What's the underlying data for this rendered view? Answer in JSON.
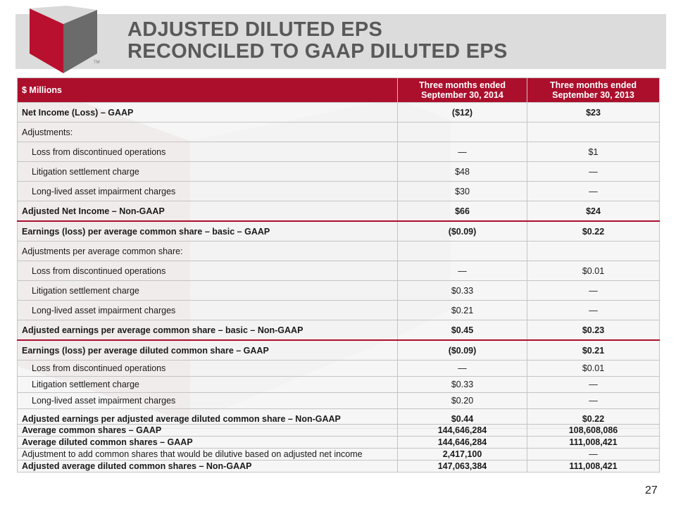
{
  "slide": {
    "title_line1": "ADJUSTED DILUTED EPS",
    "title_line2": "RECONCILED TO GAAP DILUTED EPS",
    "trademark": "TM",
    "page_number": "27"
  },
  "colors": {
    "accent": "#ab0f2c",
    "title": "#595959",
    "band": "#dcdcdc"
  },
  "table": {
    "headers": [
      "$ Millions",
      "Three months ended September 30, 2014",
      "Three months ended September 30, 2013"
    ],
    "rows": [
      {
        "label": "Net Income (Loss) – GAAP",
        "v2014": "($12)",
        "v2013": "$23"
      },
      {
        "label": "Adjustments:",
        "v2014": "",
        "v2013": ""
      },
      {
        "label": "Loss from discontinued operations",
        "v2014": "—",
        "v2013": "$1"
      },
      {
        "label": "Litigation settlement charge",
        "v2014": "$48",
        "v2013": "—"
      },
      {
        "label": "Long-lived asset impairment charges",
        "v2014": "$30",
        "v2013": "—"
      },
      {
        "label": "Adjusted Net Income – Non-GAAP",
        "v2014": "$66",
        "v2013": "$24"
      },
      {
        "label": "Earnings (loss) per average common share – basic – GAAP",
        "v2014": "($0.09)",
        "v2013": "$0.22"
      },
      {
        "label": "Adjustments per average common share:",
        "v2014": "",
        "v2013": ""
      },
      {
        "label": "Loss from discontinued operations",
        "v2014": "—",
        "v2013": "$0.01"
      },
      {
        "label": "Litigation settlement charge",
        "v2014": "$0.33",
        "v2013": "—"
      },
      {
        "label": "Long-lived asset impairment charges",
        "v2014": "$0.21",
        "v2013": "—"
      },
      {
        "label": "Adjusted earnings per average common share – basic – Non-GAAP",
        "v2014": "$0.45",
        "v2013": "$0.23"
      },
      {
        "label": "Earnings (loss) per average diluted common share – GAAP",
        "v2014": "($0.09)",
        "v2013": "$0.21"
      },
      {
        "label": "Loss from discontinued operations",
        "v2014": "—",
        "v2013": "$0.01"
      },
      {
        "label": "Litigation settlement charge",
        "v2014": "$0.33",
        "v2013": "—"
      },
      {
        "label": "Long-lived asset impairment charges",
        "v2014": "$0.20",
        "v2013": "—"
      },
      {
        "label": "Adjusted earnings per adjusted average diluted common share – Non-GAAP",
        "v2014": "$0.44",
        "v2013": "$0.22"
      }
    ]
  },
  "shares": {
    "rows": [
      {
        "label": "Average common shares – GAAP",
        "v2014": "144,646,284",
        "v2013": "108,608,086"
      },
      {
        "label": "Average diluted common shares – GAAP",
        "v2014": "144,646,284",
        "v2013": "111,008,421"
      },
      {
        "label": "Adjustment to add common shares that would be dilutive based on adjusted net income",
        "v2014": "2,417,100",
        "v2013": "—"
      },
      {
        "label": "Adjusted average diluted common shares – Non-GAAP",
        "v2014": "147,063,384",
        "v2013": "111,008,421"
      }
    ]
  }
}
